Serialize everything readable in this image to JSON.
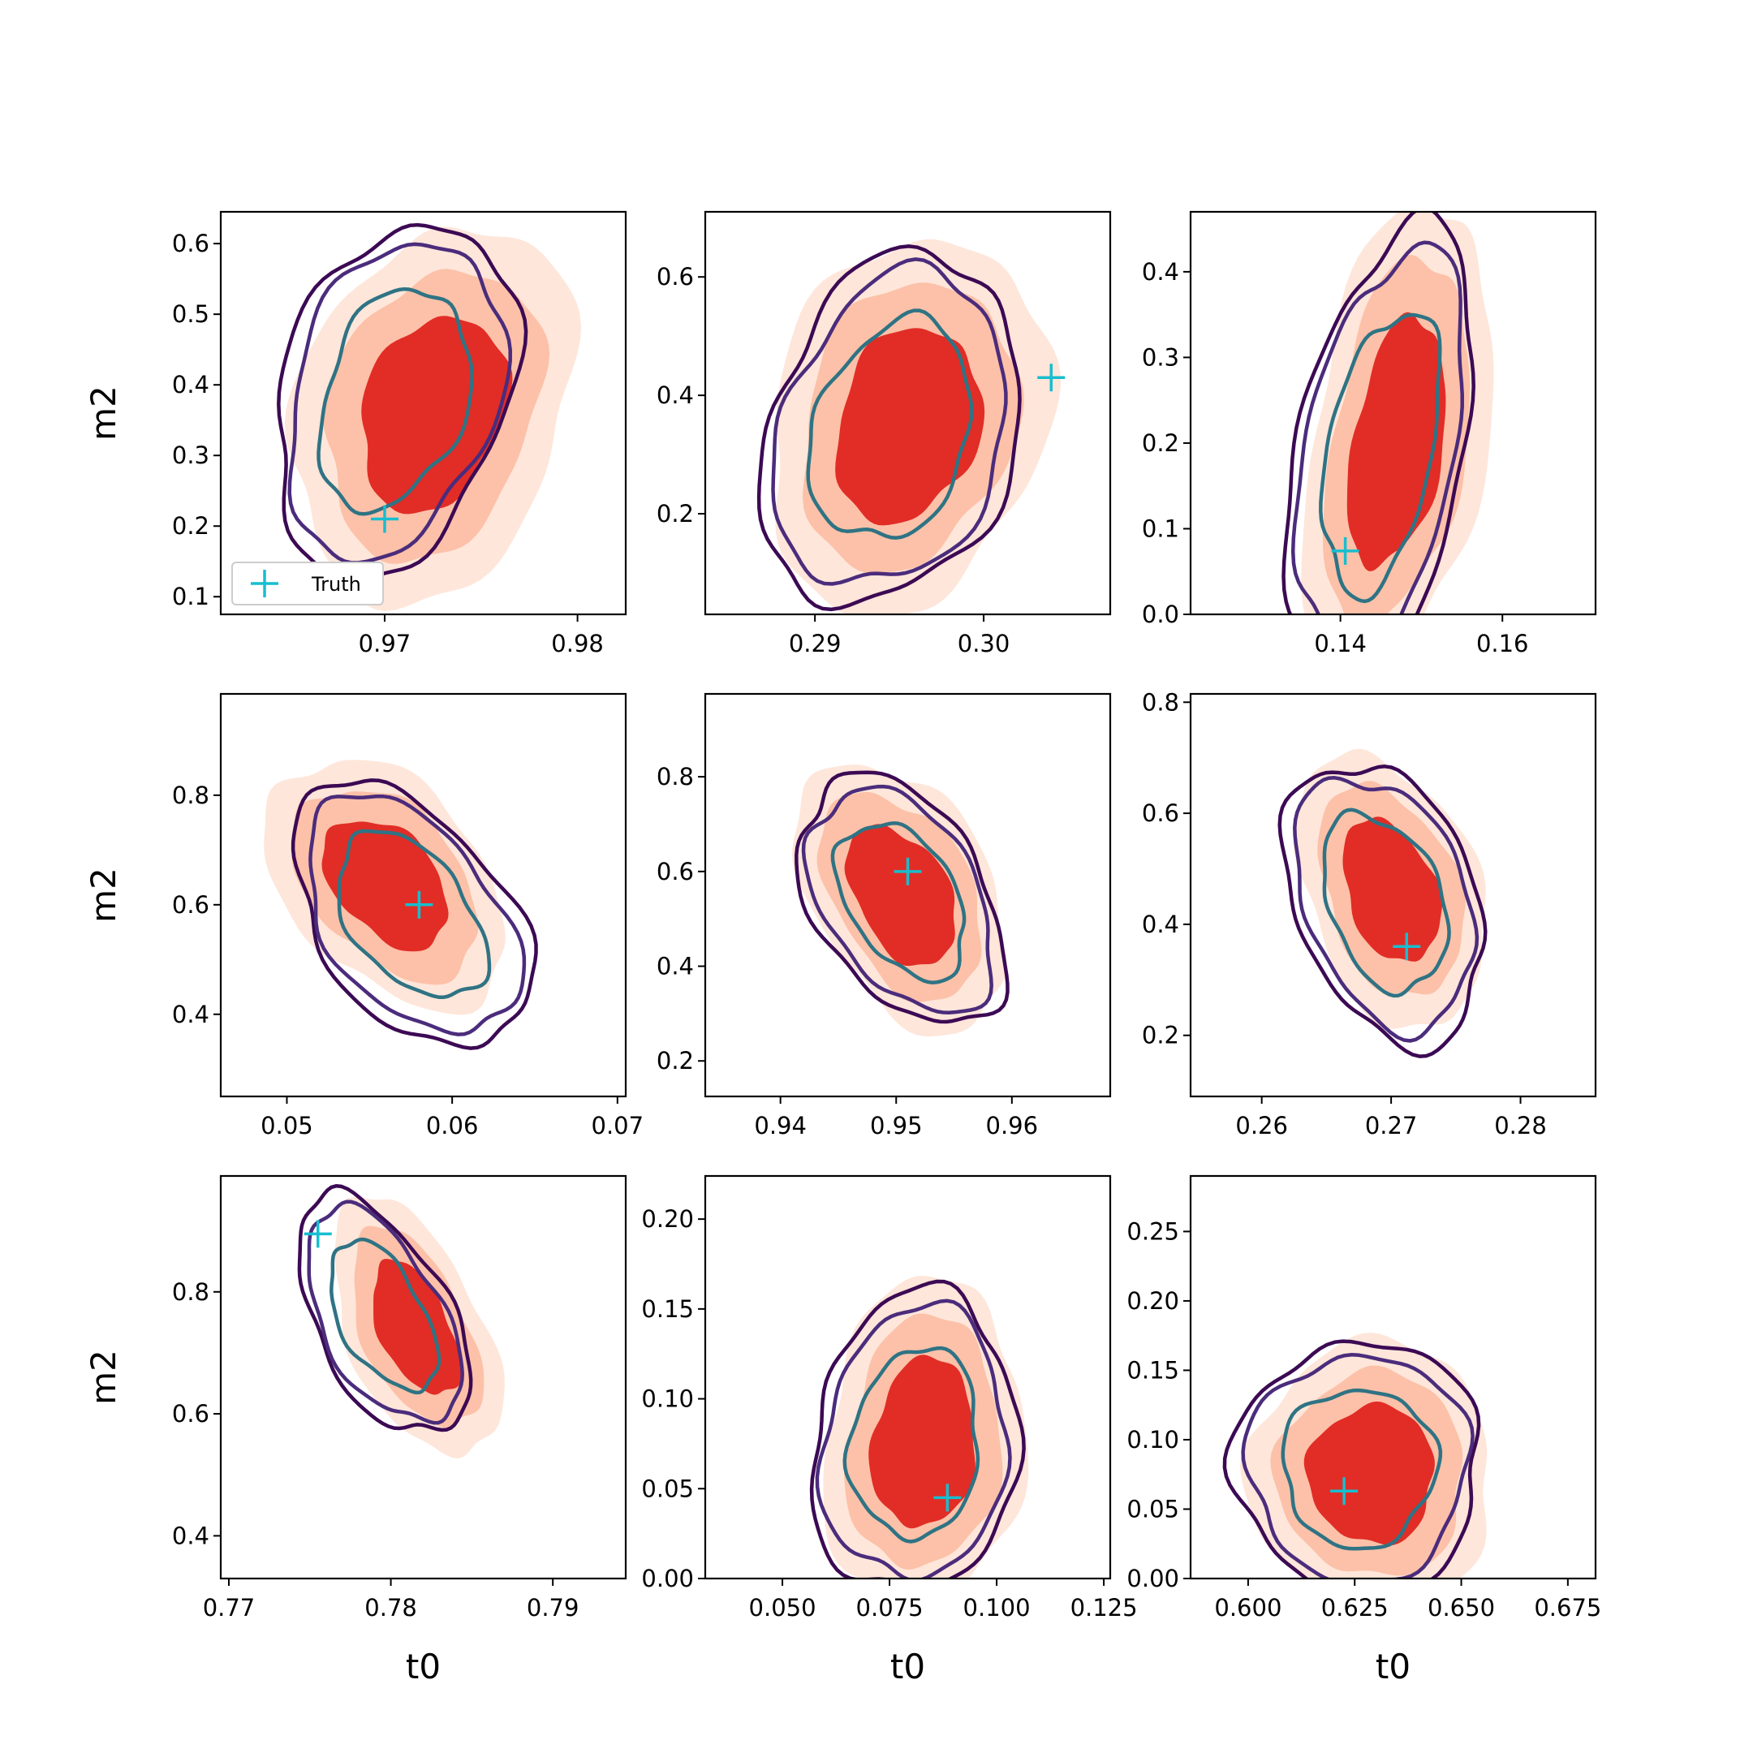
{
  "colors": {
    "fill_levels": [
      "#fee6da",
      "#fcc1a8",
      "#e12d26"
    ],
    "contour_levels": [
      "#3c0a54",
      "#4b2c7c",
      "#2f7384"
    ],
    "truth_marker": "#17becf",
    "axes": "#000000"
  },
  "legend": {
    "label": "Truth",
    "marker": "plus",
    "location": "lower left",
    "panel_index": 0
  },
  "chart_data": [
    {
      "type": "contour",
      "xlabel": "",
      "ylabel": "m2",
      "xlim": [
        0.9615,
        0.9825
      ],
      "ylim": [
        0.075,
        0.645
      ],
      "xticks": [
        0.97,
        0.98
      ],
      "xtick_labels": [
        "0.97",
        "0.98"
      ],
      "yticks": [
        0.1,
        0.2,
        0.3,
        0.4,
        0.5,
        0.6
      ],
      "ytick_labels": [
        "0.1",
        "0.2",
        "0.3",
        "0.4",
        "0.5",
        "0.6"
      ],
      "truth": [
        0.97,
        0.21
      ],
      "filled": {
        "center": [
          0.9725,
          0.36
        ],
        "spread": [
          0.0028,
          0.1
        ],
        "tilt": 0.25
      },
      "lines": {
        "center": [
          0.9705,
          0.38
        ],
        "spread": [
          0.0026,
          0.1
        ],
        "tilt": 0.3
      }
    },
    {
      "type": "contour",
      "xlabel": "",
      "ylabel": "",
      "xlim": [
        0.2835,
        0.3075
      ],
      "ylim": [
        0.03,
        0.71
      ],
      "xticks": [
        0.29,
        0.3
      ],
      "xtick_labels": [
        "0.29",
        "0.30"
      ],
      "yticks": [
        0.2,
        0.4,
        0.6
      ],
      "ytick_labels": [
        "0.2",
        "0.4",
        "0.6"
      ],
      "truth": [
        0.304,
        0.43
      ],
      "filled": {
        "center": [
          0.2955,
          0.35
        ],
        "spread": [
          0.0032,
          0.12
        ],
        "tilt": 0.2
      },
      "lines": {
        "center": [
          0.2945,
          0.34
        ],
        "spread": [
          0.0032,
          0.12
        ],
        "tilt": 0.25
      }
    },
    {
      "type": "contour",
      "xlabel": "",
      "ylabel": "",
      "xlim": [
        0.1215,
        0.1715
      ],
      "ylim": [
        0.0,
        0.47
      ],
      "xticks": [
        0.14,
        0.16
      ],
      "xtick_labels": [
        "0.14",
        "0.16"
      ],
      "yticks": [
        0.0,
        0.1,
        0.2,
        0.3,
        0.4
      ],
      "ytick_labels": [
        "0.0",
        "0.1",
        "0.2",
        "0.3",
        "0.4"
      ],
      "truth": [
        0.1406,
        0.074
      ],
      "filled": {
        "center": [
          0.147,
          0.2
        ],
        "spread": [
          0.0045,
          0.1
        ],
        "tilt": 0.4
      },
      "lines": {
        "center": [
          0.145,
          0.19
        ],
        "spread": [
          0.0048,
          0.1
        ],
        "tilt": 0.45
      }
    },
    {
      "type": "contour",
      "xlabel": "",
      "ylabel": "m2",
      "xlim": [
        0.046,
        0.0705
      ],
      "ylim": [
        0.25,
        0.985
      ],
      "xticks": [
        0.05,
        0.06,
        0.07
      ],
      "xtick_labels": [
        "0.05",
        "0.06",
        "0.07"
      ],
      "yticks": [
        0.4,
        0.6,
        0.8
      ],
      "ytick_labels": [
        "0.4",
        "0.6",
        "0.8"
      ],
      "truth": [
        0.058,
        0.6
      ],
      "filled": {
        "center": [
          0.056,
          0.64
        ],
        "spread": [
          0.0028,
          0.08
        ],
        "tilt": -0.45
      },
      "lines": {
        "center": [
          0.0575,
          0.58
        ],
        "spread": [
          0.003,
          0.09
        ],
        "tilt": -0.5
      }
    },
    {
      "type": "contour",
      "xlabel": "",
      "ylabel": "",
      "xlim": [
        0.9335,
        0.9685
      ],
      "ylim": [
        0.125,
        0.975
      ],
      "xticks": [
        0.94,
        0.95,
        0.96
      ],
      "xtick_labels": [
        "0.94",
        "0.95",
        "0.96"
      ],
      "yticks": [
        0.2,
        0.4,
        0.6,
        0.8
      ],
      "ytick_labels": [
        "0.2",
        "0.4",
        "0.6",
        "0.8"
      ],
      "truth": [
        0.951,
        0.6
      ],
      "filled": {
        "center": [
          0.9505,
          0.55
        ],
        "spread": [
          0.0035,
          0.1
        ],
        "tilt": -0.45
      },
      "lines": {
        "center": [
          0.9505,
          0.54
        ],
        "spread": [
          0.0037,
          0.1
        ],
        "tilt": -0.45
      }
    },
    {
      "type": "contour",
      "xlabel": "",
      "ylabel": "",
      "xlim": [
        0.2545,
        0.2858
      ],
      "ylim": [
        0.09,
        0.815
      ],
      "xticks": [
        0.26,
        0.27,
        0.28
      ],
      "xtick_labels": [
        "0.26",
        "0.27",
        "0.28"
      ],
      "yticks": [
        0.2,
        0.4,
        0.6,
        0.8
      ],
      "ytick_labels": [
        "0.2",
        "0.4",
        "0.6",
        "0.8"
      ],
      "truth": [
        0.2712,
        0.36
      ],
      "filled": {
        "center": [
          0.27,
          0.46
        ],
        "spread": [
          0.0028,
          0.09
        ],
        "tilt": -0.35
      },
      "lines": {
        "center": [
          0.2695,
          0.44
        ],
        "spread": [
          0.0032,
          0.1
        ],
        "tilt": -0.35
      }
    },
    {
      "type": "contour",
      "xlabel": "t0",
      "ylabel": "m2",
      "xlim": [
        0.7695,
        0.7945
      ],
      "ylim": [
        0.33,
        0.99
      ],
      "xticks": [
        0.77,
        0.78,
        0.79
      ],
      "xtick_labels": [
        "0.77",
        "0.78",
        "0.79"
      ],
      "yticks": [
        0.4,
        0.6,
        0.8
      ],
      "ytick_labels": [
        "0.4",
        "0.6",
        "0.8"
      ],
      "truth": [
        0.7755,
        0.895
      ],
      "filled": {
        "center": [
          0.7815,
          0.74
        ],
        "spread": [
          0.002,
          0.07
        ],
        "tilt": -0.6
      },
      "lines": {
        "center": [
          0.7795,
          0.76
        ],
        "spread": [
          0.0022,
          0.07
        ],
        "tilt": -0.6
      }
    },
    {
      "type": "contour",
      "xlabel": "t0",
      "ylabel": "",
      "xlim": [
        0.032,
        0.1265
      ],
      "ylim": [
        0.0,
        0.224
      ],
      "xticks": [
        0.05,
        0.075,
        0.1,
        0.125
      ],
      "xtick_labels": [
        "0.050",
        "0.075",
        "0.100",
        "0.125"
      ],
      "yticks": [
        0.0,
        0.05,
        0.1,
        0.15,
        0.2
      ],
      "ytick_labels": [
        "0.00",
        "0.05",
        "0.10",
        "0.15",
        "0.20"
      ],
      "truth": [
        0.0885,
        0.045
      ],
      "filled": {
        "center": [
          0.083,
          0.075
        ],
        "spread": [
          0.009,
          0.035
        ],
        "tilt": 0.1
      },
      "lines": {
        "center": [
          0.081,
          0.075
        ],
        "spread": [
          0.01,
          0.035
        ],
        "tilt": 0.1
      }
    },
    {
      "type": "contour",
      "xlabel": "t0",
      "ylabel": "",
      "xlim": [
        0.5865,
        0.6815
      ],
      "ylim": [
        0.0,
        0.29
      ],
      "xticks": [
        0.6,
        0.625,
        0.65,
        0.675
      ],
      "xtick_labels": [
        "0.600",
        "0.625",
        "0.650",
        "0.675"
      ],
      "yticks": [
        0.0,
        0.05,
        0.1,
        0.15,
        0.2,
        0.25
      ],
      "ytick_labels": [
        "0.00",
        "0.05",
        "0.10",
        "0.15",
        "0.20",
        "0.25"
      ],
      "truth": [
        0.6225,
        0.063
      ],
      "filled": {
        "center": [
          0.629,
          0.075
        ],
        "spread": [
          0.011,
          0.037
        ],
        "tilt": 0.0
      },
      "lines": {
        "center": [
          0.626,
          0.08
        ],
        "spread": [
          0.012,
          0.038
        ],
        "tilt": 0.0
      }
    }
  ]
}
